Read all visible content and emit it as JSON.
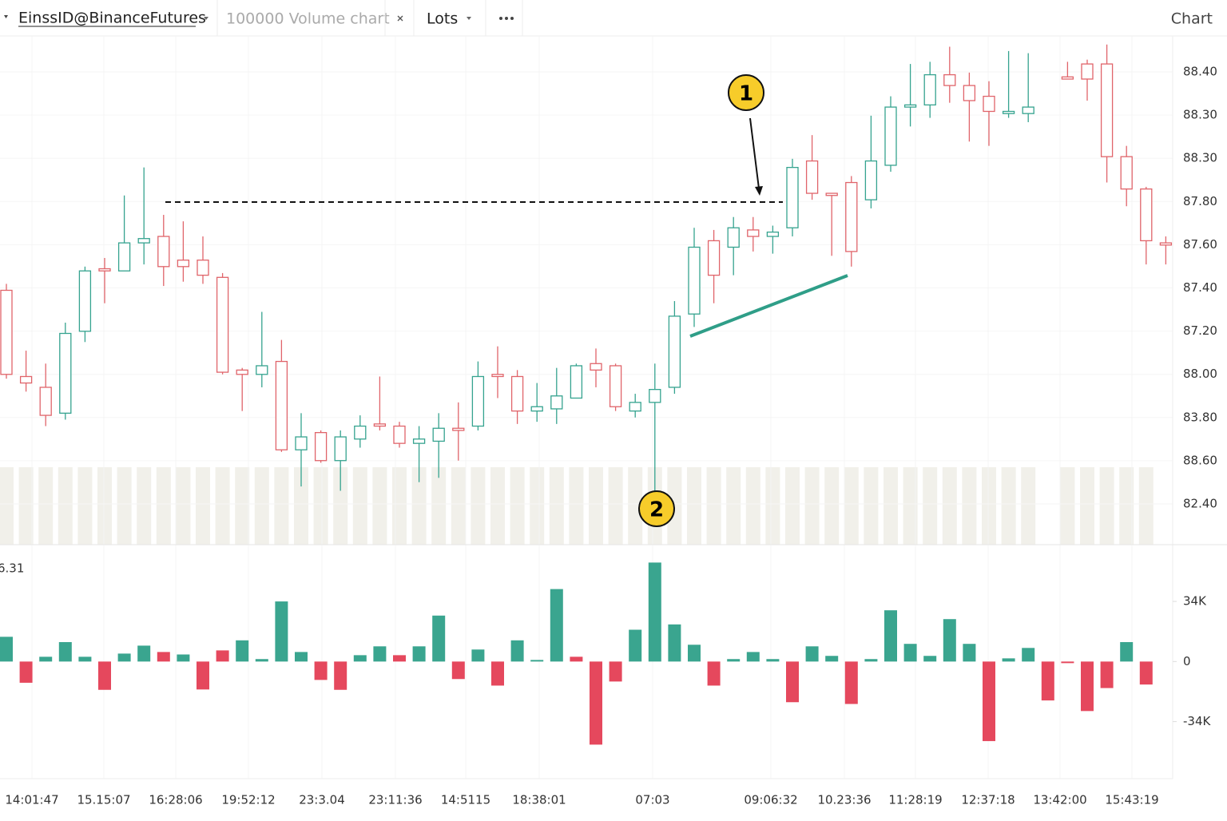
{
  "toolbar": {
    "symbol": "EinssID@BinanceFutures",
    "chart_type": "100000 Volume chart",
    "units": "Lots",
    "view": "Chart"
  },
  "chart_data": [
    {
      "type": "candlestick",
      "up_color": "#35a38f",
      "down_color": "#e0646a",
      "ylim": [
        86.21,
        88.57
      ],
      "price_axis_labels": [
        "88.40",
        "88.30",
        "88.30",
        "87.80",
        "87.60",
        "87.40",
        "87.20",
        "88.00",
        "83.80",
        "88.60",
        "82.40"
      ],
      "time_labels": [
        "14:01:47",
        "15.15:07",
        "16:28:06",
        "19:52:12",
        "23:3.04",
        "23:11:36",
        "14:5115",
        "18:38:01",
        "07:03",
        "09:06:32",
        "10.23:36",
        "11:28:19",
        "12:37:18",
        "13:42:00",
        "15:43:19"
      ],
      "annotations": [
        "1",
        "2"
      ],
      "ohlc": [
        [
          87.39,
          87.42,
          86.98,
          87.0
        ],
        [
          86.99,
          87.11,
          86.92,
          86.96
        ],
        [
          86.94,
          87.05,
          86.76,
          86.81
        ],
        [
          86.82,
          87.24,
          86.79,
          87.19
        ],
        [
          87.2,
          87.5,
          87.15,
          87.48
        ],
        [
          87.49,
          87.54,
          87.33,
          87.48
        ],
        [
          87.48,
          87.83,
          87.48,
          87.61
        ],
        [
          87.61,
          87.96,
          87.51,
          87.63
        ],
        [
          87.64,
          87.74,
          87.41,
          87.5
        ],
        [
          87.53,
          87.71,
          87.43,
          87.5
        ],
        [
          87.53,
          87.64,
          87.42,
          87.46
        ],
        [
          87.45,
          87.47,
          87.0,
          87.01
        ],
        [
          87.02,
          87.03,
          86.83,
          87.0
        ],
        [
          87.0,
          87.29,
          86.94,
          87.04
        ],
        [
          87.06,
          87.16,
          86.64,
          86.65
        ],
        [
          86.65,
          86.82,
          86.48,
          86.71
        ],
        [
          86.73,
          86.74,
          86.59,
          86.6
        ],
        [
          86.6,
          86.74,
          86.46,
          86.71
        ],
        [
          86.7,
          86.81,
          86.66,
          86.76
        ],
        [
          86.77,
          86.99,
          86.74,
          86.76
        ],
        [
          86.76,
          86.78,
          86.66,
          86.68
        ],
        [
          86.68,
          86.76,
          86.5,
          86.7
        ],
        [
          86.69,
          86.82,
          86.52,
          86.75
        ],
        [
          86.75,
          86.87,
          86.6,
          86.74
        ],
        [
          86.76,
          87.06,
          86.74,
          86.99
        ],
        [
          87.0,
          87.13,
          86.89,
          86.99
        ],
        [
          86.99,
          87.02,
          86.77,
          86.83
        ],
        [
          86.83,
          86.96,
          86.78,
          86.85
        ],
        [
          86.84,
          87.03,
          86.77,
          86.9
        ],
        [
          86.89,
          87.05,
          86.89,
          87.04
        ],
        [
          87.05,
          87.12,
          86.94,
          87.02
        ],
        [
          87.04,
          87.05,
          86.83,
          86.85
        ],
        [
          86.83,
          86.91,
          86.8,
          86.87
        ],
        [
          86.87,
          87.05,
          86.46,
          86.93
        ],
        [
          86.94,
          87.34,
          86.91,
          87.27
        ],
        [
          87.28,
          87.68,
          87.22,
          87.59
        ],
        [
          87.62,
          87.67,
          87.33,
          87.46
        ],
        [
          87.59,
          87.73,
          87.46,
          87.68
        ],
        [
          87.67,
          87.73,
          87.57,
          87.64
        ],
        [
          87.64,
          87.69,
          87.56,
          87.66
        ],
        [
          87.68,
          88.0,
          87.64,
          87.96
        ],
        [
          87.99,
          88.11,
          87.81,
          87.84
        ],
        [
          87.84,
          87.84,
          87.55,
          87.83
        ],
        [
          87.89,
          87.92,
          87.5,
          87.57
        ],
        [
          87.81,
          88.2,
          87.77,
          87.99
        ],
        [
          87.97,
          88.29,
          87.94,
          88.24
        ],
        [
          88.24,
          88.44,
          88.15,
          88.25
        ],
        [
          88.25,
          88.45,
          88.19,
          88.39
        ],
        [
          88.39,
          88.52,
          88.26,
          88.34
        ],
        [
          88.34,
          88.4,
          88.08,
          88.27
        ],
        [
          88.29,
          88.36,
          88.06,
          88.22
        ],
        [
          88.21,
          88.5,
          88.19,
          88.22
        ],
        [
          88.21,
          88.49,
          88.17,
          88.24
        ],
        null,
        [
          88.38,
          88.45,
          88.37,
          88.37
        ],
        [
          88.44,
          88.46,
          88.27,
          88.37
        ],
        [
          88.44,
          88.53,
          87.89,
          88.01
        ],
        [
          88.01,
          88.06,
          87.78,
          87.86
        ],
        [
          87.86,
          87.87,
          87.51,
          87.62
        ],
        [
          87.61,
          87.64,
          87.51,
          87.6
        ]
      ]
    },
    {
      "type": "bar",
      "corner_label": "6.31",
      "ylim": [
        -64000,
        62500
      ],
      "yticks": [
        {
          "value": 34000,
          "label": "34K"
        },
        0,
        {
          "value": -34000,
          "label": "-34K"
        }
      ],
      "series": [
        {
          "color": "#3aa58f",
          "values": [
            14000,
            null,
            2700,
            11000,
            2700,
            null,
            4500,
            9000,
            null,
            4000,
            null,
            null,
            12000,
            1400,
            34000,
            5400,
            null,
            null,
            3600,
            8600,
            null,
            8600,
            26000,
            null,
            6800,
            null,
            12000,
            900,
            41000,
            null,
            null,
            null,
            18000,
            56000,
            21000,
            9500,
            null,
            1400,
            5400,
            1400,
            null,
            8600,
            3200,
            null,
            1400,
            29000,
            10000,
            3200,
            24000,
            10000,
            null,
            1800,
            7700,
            null,
            null,
            null,
            null,
            11000,
            null,
            null
          ]
        },
        {
          "color": "#e5485d",
          "values": [
            null,
            -12000,
            null,
            null,
            null,
            -16000,
            null,
            null,
            5400,
            null,
            -15800,
            6300,
            null,
            null,
            null,
            null,
            -10400,
            -16000,
            null,
            null,
            3600,
            null,
            null,
            -9900,
            null,
            -13600,
            null,
            null,
            null,
            2700,
            -47000,
            -11300,
            null,
            null,
            null,
            null,
            -13600,
            null,
            null,
            null,
            -23000,
            null,
            null,
            -24000,
            null,
            null,
            null,
            null,
            null,
            null,
            -45000,
            null,
            null,
            -22000,
            -900,
            -28000,
            -15000,
            null,
            -13000,
            null
          ]
        }
      ]
    }
  ]
}
